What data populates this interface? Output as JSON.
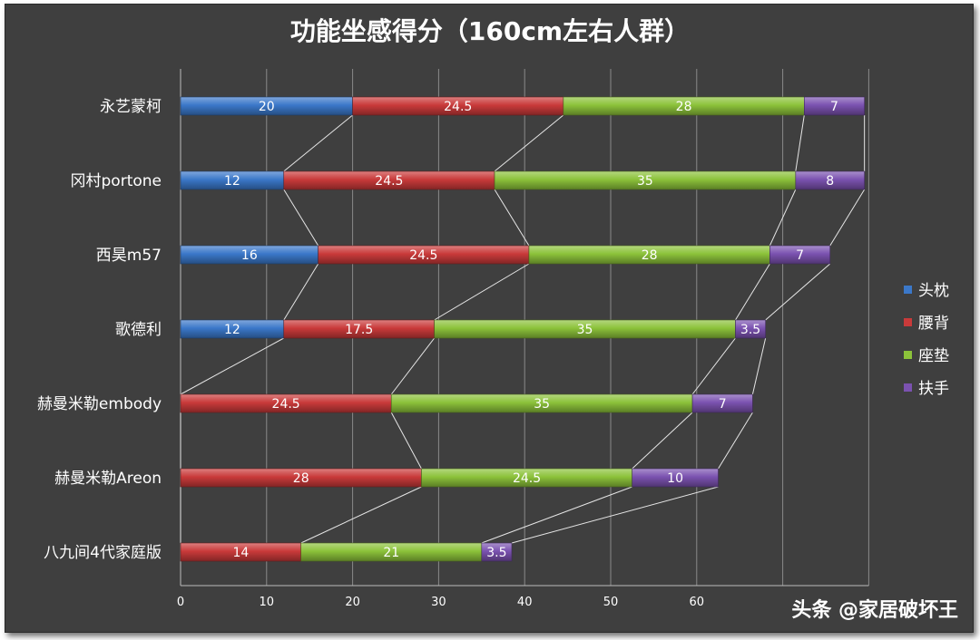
{
  "chart_data": {
    "type": "bar",
    "orientation": "horizontal",
    "stacked": true,
    "title": "功能坐感得分（160cm左右人群）",
    "categories": [
      "永艺蒙柯",
      "冈村portone",
      "西昊m57",
      "歌德利",
      "赫曼米勒embody",
      "赫曼米勒Areon",
      "八九间4代家庭版"
    ],
    "series": [
      {
        "name": "头枕",
        "color": "#3b78c9",
        "values": [
          20,
          12,
          16,
          12,
          0,
          0,
          0
        ]
      },
      {
        "name": "腰背",
        "color": "#c93a3a",
        "values": [
          24.5,
          24.5,
          24.5,
          17.5,
          24.5,
          28,
          14
        ]
      },
      {
        "name": "座垫",
        "color": "#8cc23a",
        "values": [
          28,
          35,
          28,
          35,
          35,
          24.5,
          21
        ]
      },
      {
        "name": "扶手",
        "color": "#7b52b0",
        "values": [
          7,
          8,
          7,
          3.5,
          7,
          10,
          3.5
        ]
      }
    ],
    "xlim": [
      0,
      80
    ],
    "xticks": [
      "0",
      "10",
      "20",
      "30",
      "40",
      "50",
      "60"
    ],
    "grid": true,
    "legend": "right"
  },
  "watermark": "头条 @家居破坏王"
}
